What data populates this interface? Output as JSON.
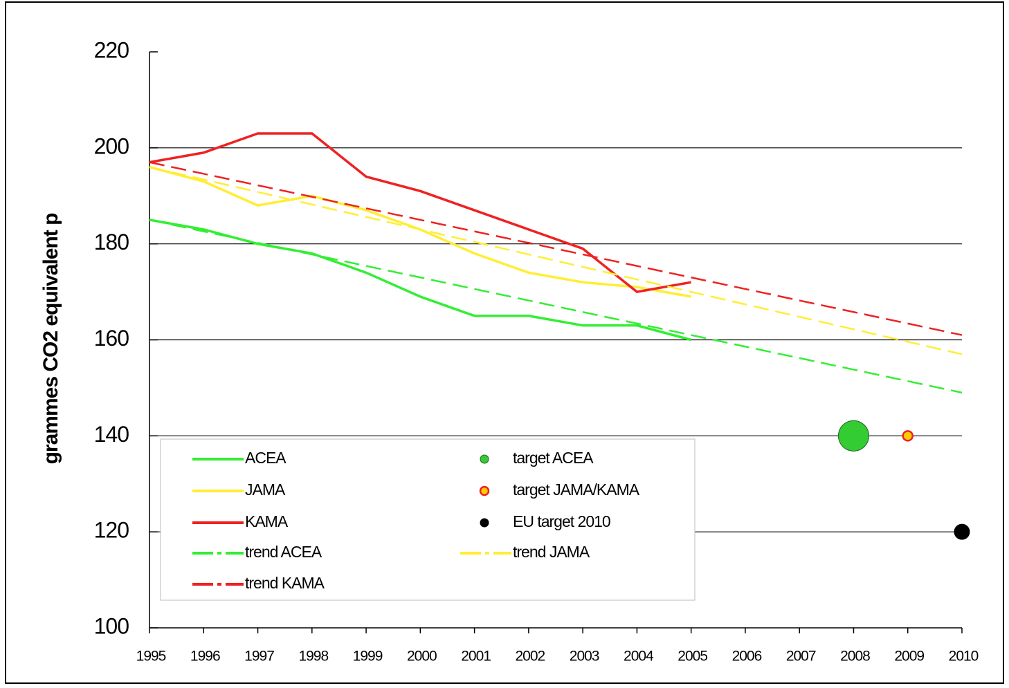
{
  "chart_data": {
    "type": "line",
    "ylabel": "grammes CO2 equivalent p",
    "x": [
      1995,
      1996,
      1997,
      1998,
      1999,
      2000,
      2001,
      2002,
      2003,
      2004,
      2005,
      2006,
      2007,
      2008,
      2009,
      2010
    ],
    "xlim": [
      1995,
      2010
    ],
    "xticks": [
      1995,
      1996,
      1997,
      1998,
      1999,
      2000,
      2001,
      2002,
      2003,
      2004,
      2005,
      2006,
      2007,
      2008,
      2009,
      2010
    ],
    "ylim": [
      100,
      220
    ],
    "yticks": [
      100,
      120,
      140,
      160,
      180,
      200,
      220
    ],
    "grid": true,
    "series": [
      {
        "name": "ACEA",
        "color": "#33ee33",
        "style": "solid",
        "values": [
          185,
          183,
          180,
          178,
          174,
          169,
          165,
          165,
          163,
          163,
          160,
          null,
          null,
          null,
          null,
          null
        ]
      },
      {
        "name": "JAMA",
        "color": "#ffee33",
        "style": "solid",
        "values": [
          196,
          193,
          188,
          190,
          187,
          183,
          178,
          174,
          172,
          171,
          169,
          null,
          null,
          null,
          null,
          null
        ]
      },
      {
        "name": "KAMA",
        "color": "#ee2222",
        "style": "solid",
        "values": [
          197,
          199,
          203,
          203,
          194,
          191,
          187,
          183,
          179,
          170,
          172,
          null,
          null,
          null,
          null,
          null
        ]
      },
      {
        "name": "trend ACEA",
        "color": "#33ee33",
        "style": "dashed",
        "values": [
          185,
          182.6,
          180.2,
          177.8,
          175.4,
          173,
          170.6,
          168.2,
          165.8,
          163.4,
          161,
          158.6,
          156.2,
          153.8,
          151.4,
          149
        ]
      },
      {
        "name": "trend JAMA",
        "color": "#ffee33",
        "style": "dashed",
        "values": [
          196,
          193.4,
          190.8,
          188.2,
          185.6,
          183,
          180.4,
          177.8,
          175.2,
          172.6,
          170,
          167.4,
          164.8,
          162.2,
          159.6,
          157
        ]
      },
      {
        "name": "trend KAMA",
        "color": "#ee2222",
        "style": "dashed",
        "values": [
          197,
          194.6,
          192.2,
          189.8,
          187.4,
          185,
          182.6,
          180.2,
          177.8,
          175.4,
          173,
          170.6,
          168.2,
          165.8,
          163.4,
          161
        ]
      }
    ],
    "points": [
      {
        "name": "target ACEA",
        "color": "#33cc33",
        "edge": "#226622",
        "x": 2008,
        "y": 140
      },
      {
        "name": "target JAMA/KAMA",
        "color": "#ffcc00",
        "edge": "#ee2222",
        "x": 2009,
        "y": 140
      },
      {
        "name": "EU target 2010",
        "color": "#000000",
        "edge": "#000000",
        "x": 2010,
        "y": 120
      }
    ]
  }
}
